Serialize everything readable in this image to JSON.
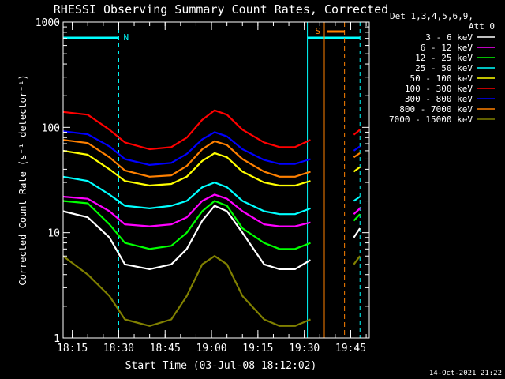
{
  "chart_data": {
    "type": "line",
    "title": "RHESSI Observing Summary Count Rates, Corrected",
    "xlabel": "Start Time (03-Jul-08 18:12:02)",
    "ylabel": "Corrected Count Rate (s⁻¹ detector⁻¹)",
    "ylog": true,
    "ylim": [
      1,
      1000
    ],
    "xlim": [
      "18:12:02",
      "19:51:00"
    ],
    "x_ticks": [
      "18:15",
      "18:30",
      "18:45",
      "19:00",
      "19:15",
      "19:30",
      "19:45"
    ],
    "y_ticks": [
      "1",
      "10",
      "100",
      "1000"
    ],
    "legend_title": [
      "Det 1,3,4,5,6,9,",
      "Att 0"
    ],
    "legend_position": "right",
    "timestamp": "14-Oct-2021 21:22",
    "flags": {
      "night_label": "N",
      "saa_label": "S",
      "night_color": "#00ffff",
      "saa_color": "#ff8000"
    },
    "series": [
      {
        "name": "3 - 6 keV",
        "color": "#ffffff",
        "x": [
          "18:12",
          "18:20",
          "18:27",
          "18:32",
          "18:40",
          "18:47",
          "18:52",
          "18:57",
          "19:01",
          "19:05",
          "19:10",
          "19:17",
          "19:22",
          "19:27",
          "19:32",
          "19:46",
          "19:48"
        ],
        "values": [
          16,
          14,
          9,
          5,
          4.5,
          5,
          7,
          13,
          18,
          16,
          10,
          5,
          4.5,
          4.5,
          5.5,
          9,
          11
        ]
      },
      {
        "name": "6 - 12 keV",
        "color": "#ff00ff",
        "x": [
          "18:12",
          "18:20",
          "18:27",
          "18:32",
          "18:40",
          "18:47",
          "18:52",
          "18:57",
          "19:01",
          "19:05",
          "19:10",
          "19:17",
          "19:22",
          "19:27",
          "19:32",
          "19:46",
          "19:48"
        ],
        "values": [
          22,
          21,
          16,
          12,
          11.5,
          12,
          14,
          20,
          23,
          21,
          16,
          12,
          11.5,
          11.5,
          12.5,
          15,
          17
        ]
      },
      {
        "name": "12 - 25 keV",
        "color": "#00ff00",
        "x": [
          "18:12",
          "18:20",
          "18:27",
          "18:32",
          "18:40",
          "18:47",
          "18:52",
          "18:57",
          "19:01",
          "19:05",
          "19:10",
          "19:17",
          "19:22",
          "19:27",
          "19:32",
          "19:46",
          "19:48"
        ],
        "values": [
          20,
          19,
          12,
          8,
          7,
          7.5,
          10,
          16,
          20,
          18,
          11,
          8,
          7,
          7,
          8,
          13,
          15
        ]
      },
      {
        "name": "25 - 50 keV",
        "color": "#00ffff",
        "x": [
          "18:12",
          "18:20",
          "18:27",
          "18:32",
          "18:40",
          "18:47",
          "18:52",
          "18:57",
          "19:01",
          "19:05",
          "19:10",
          "19:17",
          "19:22",
          "19:27",
          "19:32",
          "19:46",
          "19:48"
        ],
        "values": [
          34,
          31,
          23,
          18,
          17,
          18,
          20,
          27,
          30,
          27,
          20,
          16,
          15,
          15,
          17,
          20,
          22
        ]
      },
      {
        "name": "50 - 100 keV",
        "color": "#ffff00",
        "x": [
          "18:12",
          "18:20",
          "18:27",
          "18:32",
          "18:40",
          "18:47",
          "18:52",
          "18:57",
          "19:01",
          "19:05",
          "19:10",
          "19:17",
          "19:22",
          "19:27",
          "19:32",
          "19:46",
          "19:48"
        ],
        "values": [
          60,
          55,
          40,
          31,
          28,
          29,
          34,
          48,
          57,
          52,
          38,
          30,
          28,
          28,
          31,
          38,
          42
        ]
      },
      {
        "name": "100 - 300 keV",
        "color": "#ff0000",
        "x": [
          "18:12",
          "18:20",
          "18:27",
          "18:32",
          "18:40",
          "18:47",
          "18:52",
          "18:57",
          "19:01",
          "19:05",
          "19:10",
          "19:17",
          "19:22",
          "19:27",
          "19:32",
          "19:46",
          "19:48"
        ],
        "values": [
          140,
          132,
          95,
          72,
          62,
          65,
          80,
          118,
          145,
          132,
          95,
          72,
          65,
          65,
          76,
          85,
          95
        ]
      },
      {
        "name": "300 - 800 keV",
        "color": "#0000ff",
        "x": [
          "18:12",
          "18:20",
          "18:27",
          "18:32",
          "18:40",
          "18:47",
          "18:52",
          "18:57",
          "19:01",
          "19:05",
          "19:10",
          "19:17",
          "19:22",
          "19:27",
          "19:32",
          "19:46",
          "19:48"
        ],
        "values": [
          92,
          86,
          66,
          50,
          44,
          46,
          56,
          77,
          90,
          82,
          62,
          49,
          45,
          45,
          50,
          60,
          66
        ]
      },
      {
        "name": "800 - 7000 keV",
        "color": "#ff8000",
        "x": [
          "18:12",
          "18:20",
          "18:27",
          "18:32",
          "18:40",
          "18:47",
          "18:52",
          "18:57",
          "19:01",
          "19:05",
          "19:10",
          "19:17",
          "19:22",
          "19:27",
          "19:32",
          "19:46",
          "19:48"
        ],
        "values": [
          76,
          71,
          52,
          39,
          34,
          35,
          43,
          62,
          74,
          68,
          50,
          38,
          34,
          34,
          38,
          52,
          57
        ]
      },
      {
        "name": "7000 - 15000 keV",
        "color": "#808000",
        "x": [
          "18:12",
          "18:20",
          "18:27",
          "18:32",
          "18:40",
          "18:47",
          "18:52",
          "18:57",
          "19:01",
          "19:05",
          "19:10",
          "19:17",
          "19:22",
          "19:27",
          "19:32",
          "19:46",
          "19:48"
        ],
        "values": [
          6,
          4,
          2.5,
          1.5,
          1.3,
          1.5,
          2.5,
          5,
          6,
          5,
          2.5,
          1.5,
          1.3,
          1.3,
          1.5,
          5,
          6
        ]
      }
    ]
  }
}
